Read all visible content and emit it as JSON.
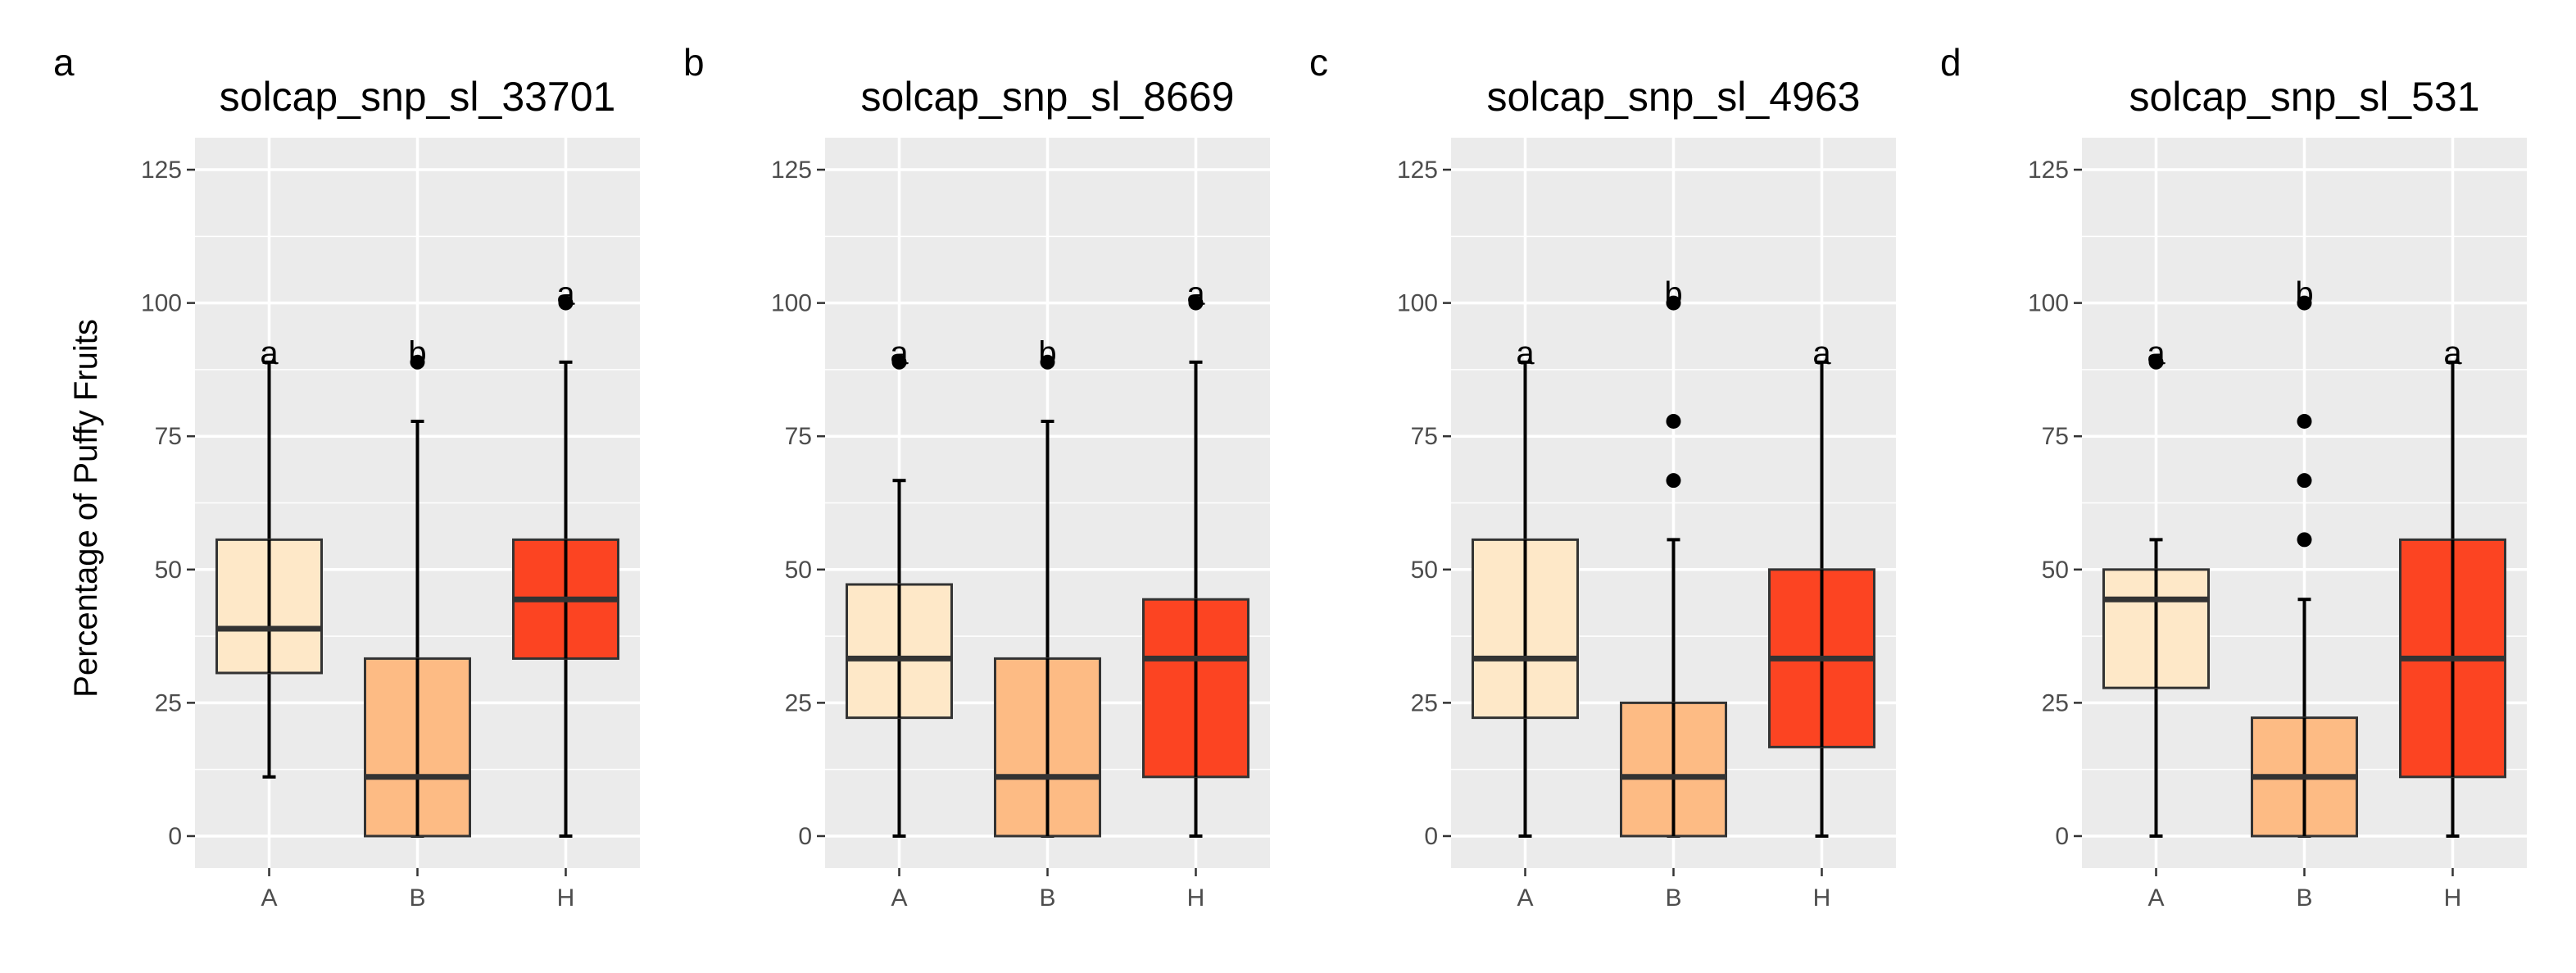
{
  "chart_data": [
    {
      "type": "box",
      "panel": "a",
      "title": "solcap_snp_sl_33701",
      "xlabel": "",
      "ylabel": "Percentage of Puffy Fruits",
      "ylim": [
        -6,
        131
      ],
      "yticks": [
        "0",
        "25",
        "50",
        "75",
        "100",
        "125"
      ],
      "categories": [
        "A",
        "B",
        "H"
      ],
      "boxes": [
        {
          "category": "A",
          "min": 11.1,
          "q1": 30.6,
          "median": 38.9,
          "q3": 55.6,
          "max": 88.9,
          "outliers": [],
          "letter": "a",
          "color": "#fee8c8"
        },
        {
          "category": "B",
          "min": 0,
          "q1": 0,
          "median": 11.1,
          "q3": 33.3,
          "max": 77.8,
          "outliers": [
            88.9
          ],
          "letter": "b",
          "color": "#fdbb84"
        },
        {
          "category": "H",
          "min": 0,
          "q1": 33.3,
          "median": 44.4,
          "q3": 55.6,
          "max": 88.9,
          "outliers": [
            100
          ],
          "letter": "a",
          "color": "#fc4422"
        }
      ]
    },
    {
      "type": "box",
      "panel": "b",
      "title": "solcap_snp_sl_8669",
      "xlabel": "",
      "ylabel": "",
      "ylim": [
        -6,
        131
      ],
      "yticks": [
        "0",
        "25",
        "50",
        "75",
        "100",
        "125"
      ],
      "categories": [
        "A",
        "B",
        "H"
      ],
      "boxes": [
        {
          "category": "A",
          "min": 0,
          "q1": 22.2,
          "median": 33.3,
          "q3": 47.2,
          "max": 66.7,
          "outliers": [
            88.9
          ],
          "letter": "a",
          "color": "#fee8c8"
        },
        {
          "category": "B",
          "min": 0,
          "q1": 0,
          "median": 11.1,
          "q3": 33.3,
          "max": 77.8,
          "outliers": [
            88.9
          ],
          "letter": "b",
          "color": "#fdbb84"
        },
        {
          "category": "H",
          "min": 0,
          "q1": 11.1,
          "median": 33.3,
          "q3": 44.4,
          "max": 88.9,
          "outliers": [
            100
          ],
          "letter": "a",
          "color": "#fc4422"
        }
      ]
    },
    {
      "type": "box",
      "panel": "c",
      "title": "solcap_snp_sl_4963",
      "xlabel": "",
      "ylabel": "",
      "ylim": [
        -6,
        131
      ],
      "yticks": [
        "0",
        "25",
        "50",
        "75",
        "100",
        "125"
      ],
      "categories": [
        "A",
        "B",
        "H"
      ],
      "boxes": [
        {
          "category": "A",
          "min": 0,
          "q1": 22.2,
          "median": 33.3,
          "q3": 55.6,
          "max": 88.9,
          "outliers": [],
          "letter": "a",
          "color": "#fee8c8"
        },
        {
          "category": "B",
          "min": 0,
          "q1": 0,
          "median": 11.1,
          "q3": 25.0,
          "max": 55.6,
          "outliers": [
            66.7,
            77.8,
            100
          ],
          "letter": "b",
          "color": "#fdbb84"
        },
        {
          "category": "H",
          "min": 0,
          "q1": 16.7,
          "median": 33.3,
          "q3": 50.0,
          "max": 88.9,
          "outliers": [],
          "letter": "a",
          "color": "#fc4422"
        }
      ]
    },
    {
      "type": "box",
      "panel": "d",
      "title": "solcap_snp_sl_531",
      "xlabel": "",
      "ylabel": "",
      "ylim": [
        -6,
        131
      ],
      "yticks": [
        "0",
        "25",
        "50",
        "75",
        "100",
        "125"
      ],
      "categories": [
        "A",
        "B",
        "H"
      ],
      "boxes": [
        {
          "category": "A",
          "min": 0,
          "q1": 27.8,
          "median": 44.4,
          "q3": 50.0,
          "max": 55.6,
          "outliers": [
            88.9
          ],
          "letter": "a",
          "color": "#fee8c8"
        },
        {
          "category": "B",
          "min": 0,
          "q1": 0,
          "median": 11.1,
          "q3": 22.2,
          "max": 44.4,
          "outliers": [
            55.6,
            66.7,
            77.8,
            100
          ],
          "letter": "b",
          "color": "#fdbb84"
        },
        {
          "category": "H",
          "min": 0,
          "q1": 11.1,
          "median": 33.3,
          "q3": 55.6,
          "max": 88.9,
          "outliers": [],
          "letter": "a",
          "color": "#fc4422"
        }
      ]
    }
  ],
  "colors": {
    "panel_background": "#ebebeb",
    "grid": "#ffffff",
    "box_outline": "#333333",
    "whisker": "#000000"
  }
}
